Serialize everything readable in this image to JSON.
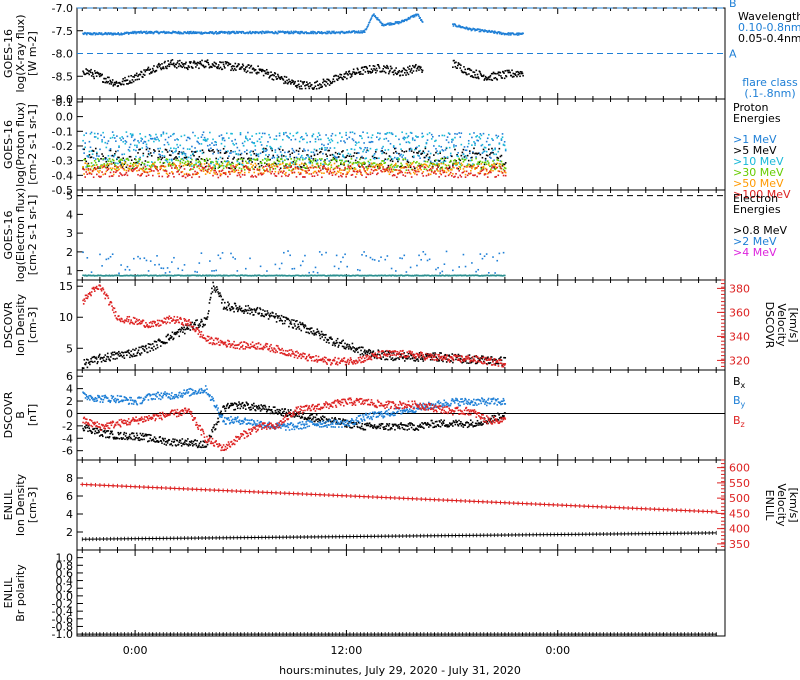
{
  "footer": {
    "xlabel": "hours:minutes, July 29, 2020 - July 31, 2020"
  },
  "x_ticks": [
    "0:00",
    "12:00",
    "0:00"
  ],
  "chart_data": [
    {
      "type": "scatter",
      "panel": "xray",
      "ylabel_lines": [
        "GOES-16",
        "log(X-ray flux)",
        "[W m-2]"
      ],
      "ylim": [
        -9.0,
        -7.0
      ],
      "yticks": [
        "-7.0",
        "-7.5",
        "-8.0",
        "-8.5",
        "-9.0"
      ],
      "ytick_values": [
        -7.0,
        -7.5,
        -8.0,
        -8.5,
        -9.0
      ],
      "flare_classes": [
        {
          "label": "B",
          "value": -7.0
        },
        {
          "label": "A",
          "value": -8.0
        }
      ],
      "legend": {
        "title": "Wavelength",
        "entries": [
          {
            "label": "0.10-0.8nm",
            "color": "#1e7fd6"
          },
          {
            "label": "0.05-0.4nm",
            "color": "#000000"
          }
        ],
        "note_lines": [
          "flare class",
          "(.1-.8nm)"
        ]
      },
      "series": [
        {
          "name": "0.10-0.8nm",
          "color": "#1e7fd6",
          "x": [
            -3,
            -1,
            0,
            2,
            4,
            6,
            8,
            10,
            12,
            13.0,
            13.5,
            14.0,
            15,
            16.0,
            16.5,
            18.0,
            19.0,
            21.0,
            22.0
          ],
          "y": [
            -7.55,
            -7.55,
            -7.52,
            -7.52,
            -7.53,
            -7.52,
            -7.52,
            -7.52,
            -7.52,
            -7.5,
            -7.12,
            -7.35,
            -7.3,
            -7.12,
            -7.45,
            -7.35,
            -7.45,
            -7.55,
            -7.56
          ]
        },
        {
          "name": "0.05-0.4nm",
          "color": "#000000",
          "x": [
            -3,
            -2,
            -1,
            0,
            1,
            2,
            3,
            4,
            5,
            6,
            7,
            8,
            9,
            10,
            11,
            12,
            13,
            14,
            15,
            16.0,
            16.3,
            18.0,
            19.0,
            20.0,
            21.0,
            22.0
          ],
          "y": [
            -8.35,
            -8.5,
            -8.65,
            -8.5,
            -8.3,
            -8.2,
            -8.25,
            -8.2,
            -8.25,
            -8.3,
            -8.35,
            -8.5,
            -8.65,
            -8.7,
            -8.6,
            -8.45,
            -8.35,
            -8.3,
            -8.4,
            -8.3,
            -8.35,
            -8.2,
            -8.4,
            -8.5,
            -8.45,
            -8.4
          ]
        }
      ]
    },
    {
      "type": "scatter",
      "panel": "protons",
      "ylabel_lines": [
        "GOES-16",
        "log(Proton flux)",
        "[cm-2 s-1 sr-1]"
      ],
      "ylim": [
        -0.5,
        0.12
      ],
      "yticks": [
        "0.1",
        "0.0",
        "-0.1",
        "-0.2",
        "-0.3",
        "-0.4",
        "-0.5"
      ],
      "ytick_values": [
        0.1,
        0.0,
        -0.1,
        -0.2,
        -0.3,
        -0.4,
        -0.5
      ],
      "legend": {
        "title_lines": [
          "Proton",
          "Energies"
        ],
        "entries": [
          {
            "label": ">1 MeV",
            "color": "#1e7fd6"
          },
          {
            "label": ">5 MeV",
            "color": "#000000"
          },
          {
            "label": ">10 MeV",
            "color": "#18b8d8"
          },
          {
            "label": ">30 MeV",
            "color": "#66cc00"
          },
          {
            "label": ">50 MeV",
            "color": "#ff9900"
          },
          {
            "label": ">100 MeV",
            "color": "#dd2222"
          }
        ]
      },
      "series": [
        {
          "name": ">1 MeV",
          "color": "#1e7fd6",
          "mean": -0.2,
          "spread": 0.1
        },
        {
          "name": ">5 MeV",
          "color": "#000000",
          "mean": -0.28,
          "spread": 0.07
        },
        {
          "name": ">10 MeV",
          "color": "#18b8d8",
          "mean": -0.22,
          "spread": 0.12
        },
        {
          "name": ">30 MeV",
          "color": "#66cc00",
          "mean": -0.32,
          "spread": 0.04
        },
        {
          "name": ">50 MeV",
          "color": "#ff9900",
          "mean": -0.35,
          "spread": 0.04
        },
        {
          "name": ">100 MeV",
          "color": "#dd2222",
          "mean": -0.37,
          "spread": 0.04
        }
      ],
      "x_range": [
        -3,
        21
      ]
    },
    {
      "type": "scatter",
      "panel": "electrons",
      "ylabel_lines": [
        "GOES-16",
        "log(Electron flux)",
        "[cm-2 s-1 sr-1]"
      ],
      "ylim": [
        0.5,
        5.3
      ],
      "yticks": [
        "1",
        "2",
        "3",
        "4",
        "5"
      ],
      "ytick_values": [
        1,
        2,
        3,
        4,
        5
      ],
      "threshold": 5.0,
      "legend": {
        "title_lines": [
          "Electron",
          "Energies"
        ],
        "entries": [
          {
            "label": ">0.8 MeV",
            "color": "#000000"
          },
          {
            "label": ">2 MeV",
            "color": "#1e7fd6"
          },
          {
            "label": ">4 MeV",
            "color": "#dd22dd"
          }
        ]
      },
      "series": [
        {
          "name": ">2 MeV",
          "color": "#1e7fd6",
          "mean": 1.5,
          "spread": 0.6
        },
        {
          "name": ">4 MeV",
          "color": "#2a8f8f",
          "mean": 0.78,
          "spread": 0.02
        }
      ],
      "x_range": [
        -3,
        21
      ]
    },
    {
      "type": "line",
      "panel": "dscovr-density",
      "ylabel_lines": [
        "DSCOVR",
        "Ion Density",
        "[cm-3]"
      ],
      "ylabel_right_lines": [
        "DSCOVR",
        "Velocity",
        "[km/s]"
      ],
      "ylim": [
        1.5,
        16
      ],
      "yticks": [
        "15",
        "10",
        "5"
      ],
      "ytick_values": [
        15,
        10,
        5
      ],
      "ylim_right": [
        312,
        387
      ],
      "yticks_right": [
        "380",
        "360",
        "340",
        "320"
      ],
      "ytick_values_right": [
        380,
        360,
        340,
        320
      ],
      "series": [
        {
          "name": "Density",
          "color": "#000000",
          "axis": "left",
          "x": [
            -3,
            -2,
            -1,
            0,
            1,
            2,
            3,
            4,
            4.4,
            5,
            6,
            7,
            8,
            9,
            10,
            11,
            12,
            13,
            14,
            15,
            16,
            17,
            18,
            19,
            20,
            21
          ],
          "y": [
            2.5,
            3.5,
            4,
            4.5,
            5.5,
            7,
            8.5,
            9.5,
            15.5,
            12,
            11.5,
            11,
            10,
            9,
            8,
            6.5,
            5.5,
            4.5,
            4,
            3.8,
            3.7,
            3.8,
            3.5,
            3.4,
            3.2,
            3.0
          ]
        },
        {
          "name": "Velocity",
          "color": "#dd2222",
          "axis": "right",
          "x": [
            -3,
            -2.5,
            -2,
            -1,
            0,
            1,
            2,
            3,
            4,
            5,
            6,
            7,
            8,
            9,
            10,
            11,
            12,
            13,
            14,
            15,
            16,
            17,
            18,
            19,
            20,
            21
          ],
          "y": [
            370,
            378,
            382,
            356,
            353,
            350,
            355,
            352,
            338,
            335,
            333,
            333,
            330,
            326,
            322,
            320,
            320,
            322,
            326,
            326,
            325,
            323,
            322,
            322,
            320,
            318
          ]
        }
      ]
    },
    {
      "type": "line",
      "panel": "dscovr-bfield",
      "ylabel_lines": [
        "DSCOVR",
        "B",
        "[nT]"
      ],
      "ylim": [
        -7.5,
        7
      ],
      "yticks": [
        "6",
        "4",
        "2",
        "0",
        "-2",
        "-4",
        "-6"
      ],
      "ytick_values": [
        6,
        4,
        2,
        0,
        -2,
        -4,
        -6
      ],
      "legend": {
        "entries": [
          {
            "label": "Bx",
            "color": "#000000"
          },
          {
            "label": "By",
            "color": "#1e7fd6"
          },
          {
            "label": "Bz",
            "color": "#dd2222"
          }
        ]
      },
      "series": [
        {
          "name": "Bx",
          "color": "#000000",
          "x": [
            -3,
            -2,
            -1,
            0,
            1,
            2,
            3,
            4,
            5,
            6,
            7,
            8,
            9,
            10,
            11,
            12,
            13,
            14,
            15,
            16,
            17,
            18,
            19,
            20,
            21
          ],
          "y": [
            -2,
            -3,
            -3.5,
            -3.5,
            -4,
            -4.5,
            -4.5,
            -5,
            1,
            1.5,
            1,
            0.5,
            0,
            -0.5,
            -1,
            -1.5,
            -2,
            -2,
            -2,
            -2,
            -1.5,
            -1.5,
            -1.5,
            -1,
            0
          ]
        },
        {
          "name": "By",
          "color": "#1e7fd6",
          "x": [
            -3,
            -2,
            -1,
            0,
            1,
            2,
            3,
            4,
            5,
            6,
            7,
            8,
            9,
            10,
            11,
            12,
            13,
            14,
            15,
            16,
            17,
            18,
            19,
            20,
            21
          ],
          "y": [
            3,
            2.5,
            2.5,
            2,
            3,
            3,
            3.5,
            4,
            -1,
            -1,
            -1.5,
            -2,
            -2,
            -1.5,
            -1.5,
            -1.5,
            -0.5,
            0,
            0.5,
            1,
            1.5,
            2,
            2,
            2,
            2
          ]
        },
        {
          "name": "Bz",
          "color": "#dd2222",
          "x": [
            -3,
            -2,
            -1,
            0,
            1,
            2,
            3,
            4,
            5,
            6,
            7,
            8,
            9,
            10,
            11,
            12,
            13,
            14,
            15,
            16,
            17,
            18,
            19,
            20,
            21
          ],
          "y": [
            -1,
            -2,
            -1.5,
            -1,
            -0.5,
            0,
            0.5,
            -4,
            -5.5,
            -3.5,
            -2,
            -2,
            0.5,
            1,
            1.5,
            2,
            2,
            1.5,
            1.5,
            1.5,
            1,
            0.5,
            0.5,
            -1,
            -1
          ]
        }
      ]
    },
    {
      "type": "line",
      "panel": "enlil-density",
      "ylabel_lines": [
        "ENLIL",
        "Ion Density",
        "[cm-3]"
      ],
      "ylabel_right_lines": [
        "ENLIL",
        "Velocity",
        "[km/s]"
      ],
      "ylim": [
        0,
        10
      ],
      "yticks": [
        "8",
        "6",
        "4",
        "2"
      ],
      "ytick_values": [
        8,
        6,
        4,
        2
      ],
      "ylim_right": [
        330,
        625
      ],
      "yticks_right": [
        "600",
        "550",
        "500",
        "450",
        "400",
        "350"
      ],
      "ytick_values_right": [
        600,
        550,
        500,
        450,
        400,
        350
      ],
      "series": [
        {
          "name": "Density",
          "color": "#000000",
          "axis": "left",
          "x": [
            -3,
            33
          ],
          "y": [
            1.2,
            1.9
          ]
        },
        {
          "name": "Velocity",
          "color": "#dd2222",
          "axis": "right",
          "x": [
            -3,
            33
          ],
          "y": [
            545,
            455
          ]
        }
      ]
    },
    {
      "type": "line",
      "panel": "enlil-polarity",
      "ylabel_lines": [
        "ENLIL",
        "Br polarity"
      ],
      "ylim": [
        -1.05,
        1.2
      ],
      "yticks": [
        "1.0",
        "0.8",
        "0.6",
        "0.4",
        "0.2",
        "0.0",
        "-0.2",
        "-0.4",
        "-0.6",
        "-0.8",
        "-1.0"
      ],
      "ytick_values": [
        1.0,
        0.8,
        0.6,
        0.4,
        0.2,
        0.0,
        -0.2,
        -0.4,
        -0.6,
        -0.8,
        -1.0
      ],
      "series": [
        {
          "name": "Polarity",
          "color": "#000000",
          "x": [
            -3,
            33
          ],
          "y": [
            -1.0,
            -1.0
          ]
        }
      ]
    }
  ]
}
